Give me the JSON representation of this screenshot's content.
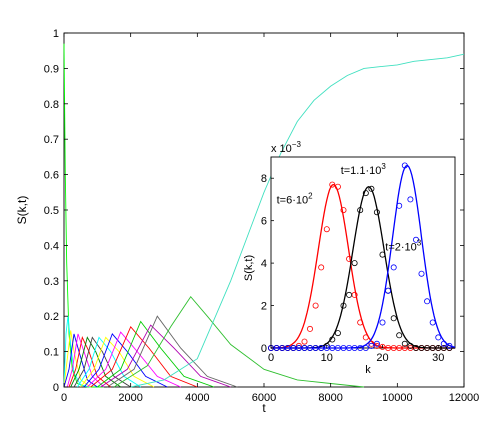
{
  "chart_data": [
    {
      "type": "line",
      "xlabel": "t",
      "ylabel": "S(k,t)",
      "xlim": [
        0,
        12000
      ],
      "ylim": [
        0,
        1
      ],
      "x_ticks": [
        "0",
        "2000",
        "4000",
        "6000",
        "8000",
        "10000",
        "12000"
      ],
      "y_ticks": [
        "0",
        "0.1",
        "0.2",
        "0.3",
        "0.4",
        "0.5",
        "0.6",
        "0.7",
        "0.8",
        "0.9",
        "1"
      ],
      "grid": false,
      "series": [
        {
          "color": "#00ff00",
          "x": [
            0,
            40,
            80,
            150,
            250,
            400,
            700,
            1200
          ],
          "y": [
            0.97,
            0.6,
            0.35,
            0.15,
            0.05,
            0.01,
            0.0,
            0.0
          ]
        },
        {
          "color": "#00ffff",
          "x": [
            0,
            60,
            120,
            200,
            300,
            500,
            800
          ],
          "y": [
            0.0,
            0.15,
            0.2,
            0.12,
            0.04,
            0.005,
            0.0
          ]
        },
        {
          "color": "#ffff00",
          "x": [
            0,
            100,
            200,
            300,
            500,
            800
          ],
          "y": [
            0.0,
            0.08,
            0.16,
            0.1,
            0.02,
            0.0
          ]
        },
        {
          "color": "#0000ff",
          "x": [
            0,
            150,
            300,
            450,
            700,
            1000
          ],
          "y": [
            0.0,
            0.05,
            0.15,
            0.1,
            0.02,
            0.0
          ]
        },
        {
          "color": "#ff00ff",
          "x": [
            100,
            250,
            420,
            600,
            850,
            1200
          ],
          "y": [
            0.0,
            0.05,
            0.15,
            0.1,
            0.03,
            0.0
          ]
        },
        {
          "color": "#ff0000",
          "x": [
            150,
            350,
            550,
            750,
            1000,
            1400
          ],
          "y": [
            0.0,
            0.05,
            0.14,
            0.1,
            0.03,
            0.0
          ]
        },
        {
          "color": "#008000",
          "x": [
            200,
            450,
            700,
            950,
            1250,
            1700
          ],
          "y": [
            0.0,
            0.05,
            0.14,
            0.1,
            0.03,
            0.0
          ]
        },
        {
          "color": "#404040",
          "x": [
            300,
            600,
            850,
            1150,
            1500,
            2000
          ],
          "y": [
            0.0,
            0.05,
            0.14,
            0.1,
            0.03,
            0.0
          ]
        },
        {
          "color": "#00ffff",
          "x": [
            400,
            750,
            1050,
            1400,
            1800,
            2300
          ],
          "y": [
            0.0,
            0.05,
            0.14,
            0.1,
            0.03,
            0.0
          ]
        },
        {
          "color": "#ffff00",
          "x": [
            500,
            900,
            1250,
            1650,
            2100,
            2700
          ],
          "y": [
            0.0,
            0.05,
            0.14,
            0.1,
            0.03,
            0.0
          ]
        },
        {
          "color": "#0000ff",
          "x": [
            600,
            1050,
            1450,
            1900,
            2450,
            3100
          ],
          "y": [
            0.0,
            0.05,
            0.15,
            0.1,
            0.03,
            0.0
          ]
        },
        {
          "color": "#ff00ff",
          "x": [
            700,
            1250,
            1700,
            2200,
            2800,
            3500
          ],
          "y": [
            0.0,
            0.05,
            0.155,
            0.1,
            0.03,
            0.0
          ]
        },
        {
          "color": "#ff0000",
          "x": [
            800,
            1450,
            2000,
            2550,
            3200,
            4000
          ],
          "y": [
            0.0,
            0.05,
            0.17,
            0.11,
            0.03,
            0.0
          ]
        },
        {
          "color": "#00cc00",
          "x": [
            1000,
            1700,
            2300,
            2900,
            3600,
            4500
          ],
          "y": [
            0.0,
            0.05,
            0.185,
            0.11,
            0.03,
            0.0
          ]
        },
        {
          "color": "#b000b0",
          "x": [
            1100,
            1900,
            2600,
            3300,
            4100,
            5000
          ],
          "y": [
            0.0,
            0.05,
            0.175,
            0.11,
            0.03,
            0.0
          ]
        },
        {
          "color": "#666666",
          "x": [
            1300,
            2100,
            2800,
            3500,
            4300,
            5200
          ],
          "y": [
            0.0,
            0.05,
            0.2,
            0.11,
            0.03,
            0.0
          ]
        },
        {
          "color": "#2fbf2f",
          "x": [
            1500,
            2500,
            3200,
            3800,
            4300,
            5000,
            6000,
            7000,
            8000,
            9000
          ],
          "y": [
            0.0,
            0.06,
            0.17,
            0.255,
            0.2,
            0.12,
            0.05,
            0.02,
            0.01,
            0.0
          ]
        },
        {
          "color": "#40e0c0",
          "x": [
            2000,
            3000,
            4000,
            5000,
            6000,
            6500,
            7000,
            7500,
            8000,
            8500,
            9000,
            9500,
            10000,
            10500,
            11000,
            11500,
            12000
          ],
          "y": [
            0.0,
            0.02,
            0.08,
            0.3,
            0.55,
            0.66,
            0.75,
            0.81,
            0.85,
            0.88,
            0.9,
            0.905,
            0.91,
            0.92,
            0.925,
            0.93,
            0.94
          ]
        }
      ]
    },
    {
      "type": "line",
      "xlabel": "k",
      "ylabel": "S(k,t)",
      "scale_label": "x 10",
      "scale_exponent": "−3",
      "xlim": [
        0,
        33
      ],
      "ylim": [
        0,
        9
      ],
      "x_ticks": [
        "0",
        "10",
        "20",
        "30"
      ],
      "y_ticks": [
        "0",
        "2",
        "4",
        "6",
        "8"
      ],
      "grid": false,
      "annotations": [
        {
          "base": "t=6·10",
          "exp": "2",
          "k": 1,
          "s": 6.8
        },
        {
          "base": "t=1.1·10",
          "exp": "3",
          "k": 12.5,
          "s": 8.2
        },
        {
          "base": "t=2·10",
          "exp": "3",
          "k": 20.5,
          "s": 4.6
        }
      ],
      "series": [
        {
          "color": "#ff0000",
          "curve_center": 11.2,
          "curve_width": 2.7,
          "curve_peak": 7.7,
          "points_k": [
            0,
            1,
            2,
            3,
            4,
            5,
            6,
            7,
            8,
            9,
            10,
            11,
            12,
            13,
            14,
            15,
            16,
            17,
            18,
            19,
            20,
            21,
            22,
            23,
            24,
            25,
            26,
            27,
            28,
            29,
            30,
            31,
            32
          ],
          "points_s": [
            0,
            0,
            0,
            0,
            0,
            0.1,
            0.3,
            0.9,
            2.0,
            3.8,
            5.6,
            7.7,
            7.6,
            6.5,
            4.2,
            2.5,
            1.2,
            0.5,
            0.2,
            0.1,
            0.05,
            0,
            0,
            0,
            0,
            0,
            0,
            0,
            0,
            0,
            0,
            0,
            0
          ]
        },
        {
          "color": "#000000",
          "curve_center": 17.5,
          "curve_width": 2.8,
          "curve_peak": 7.6,
          "points_k": [
            0,
            1,
            2,
            3,
            4,
            5,
            6,
            7,
            8,
            9,
            10,
            11,
            12,
            13,
            14,
            15,
            16,
            17,
            18,
            19,
            20,
            21,
            22,
            23,
            24,
            25,
            26,
            27,
            28,
            29,
            30,
            31,
            32
          ],
          "points_s": [
            0,
            0,
            0,
            0,
            0,
            0,
            0,
            0,
            0,
            0,
            0.1,
            0.4,
            0.7,
            2.0,
            2.5,
            4.0,
            6.5,
            7.3,
            7.5,
            6.4,
            4.4,
            2.7,
            1.4,
            0.6,
            0.2,
            0.1,
            0,
            0,
            0,
            0,
            0,
            0,
            0
          ]
        },
        {
          "color": "#0000ff",
          "curve_center": 24.4,
          "curve_width": 2.6,
          "curve_peak": 8.6,
          "points_k": [
            0,
            1,
            2,
            3,
            4,
            5,
            6,
            7,
            8,
            9,
            10,
            11,
            12,
            13,
            14,
            15,
            16,
            17,
            18,
            19,
            20,
            21,
            22,
            23,
            24,
            25,
            26,
            27,
            28,
            29,
            30,
            31,
            32
          ],
          "points_s": [
            0,
            0,
            0,
            0,
            0,
            0,
            0,
            0,
            0,
            0,
            0,
            0,
            0,
            0,
            0,
            0,
            0,
            0,
            0.1,
            0.2,
            1.2,
            2.7,
            3.8,
            6.7,
            8.6,
            7.0,
            5.1,
            3.5,
            2.2,
            1.2,
            0.5,
            0.2,
            0.1
          ]
        }
      ]
    }
  ]
}
